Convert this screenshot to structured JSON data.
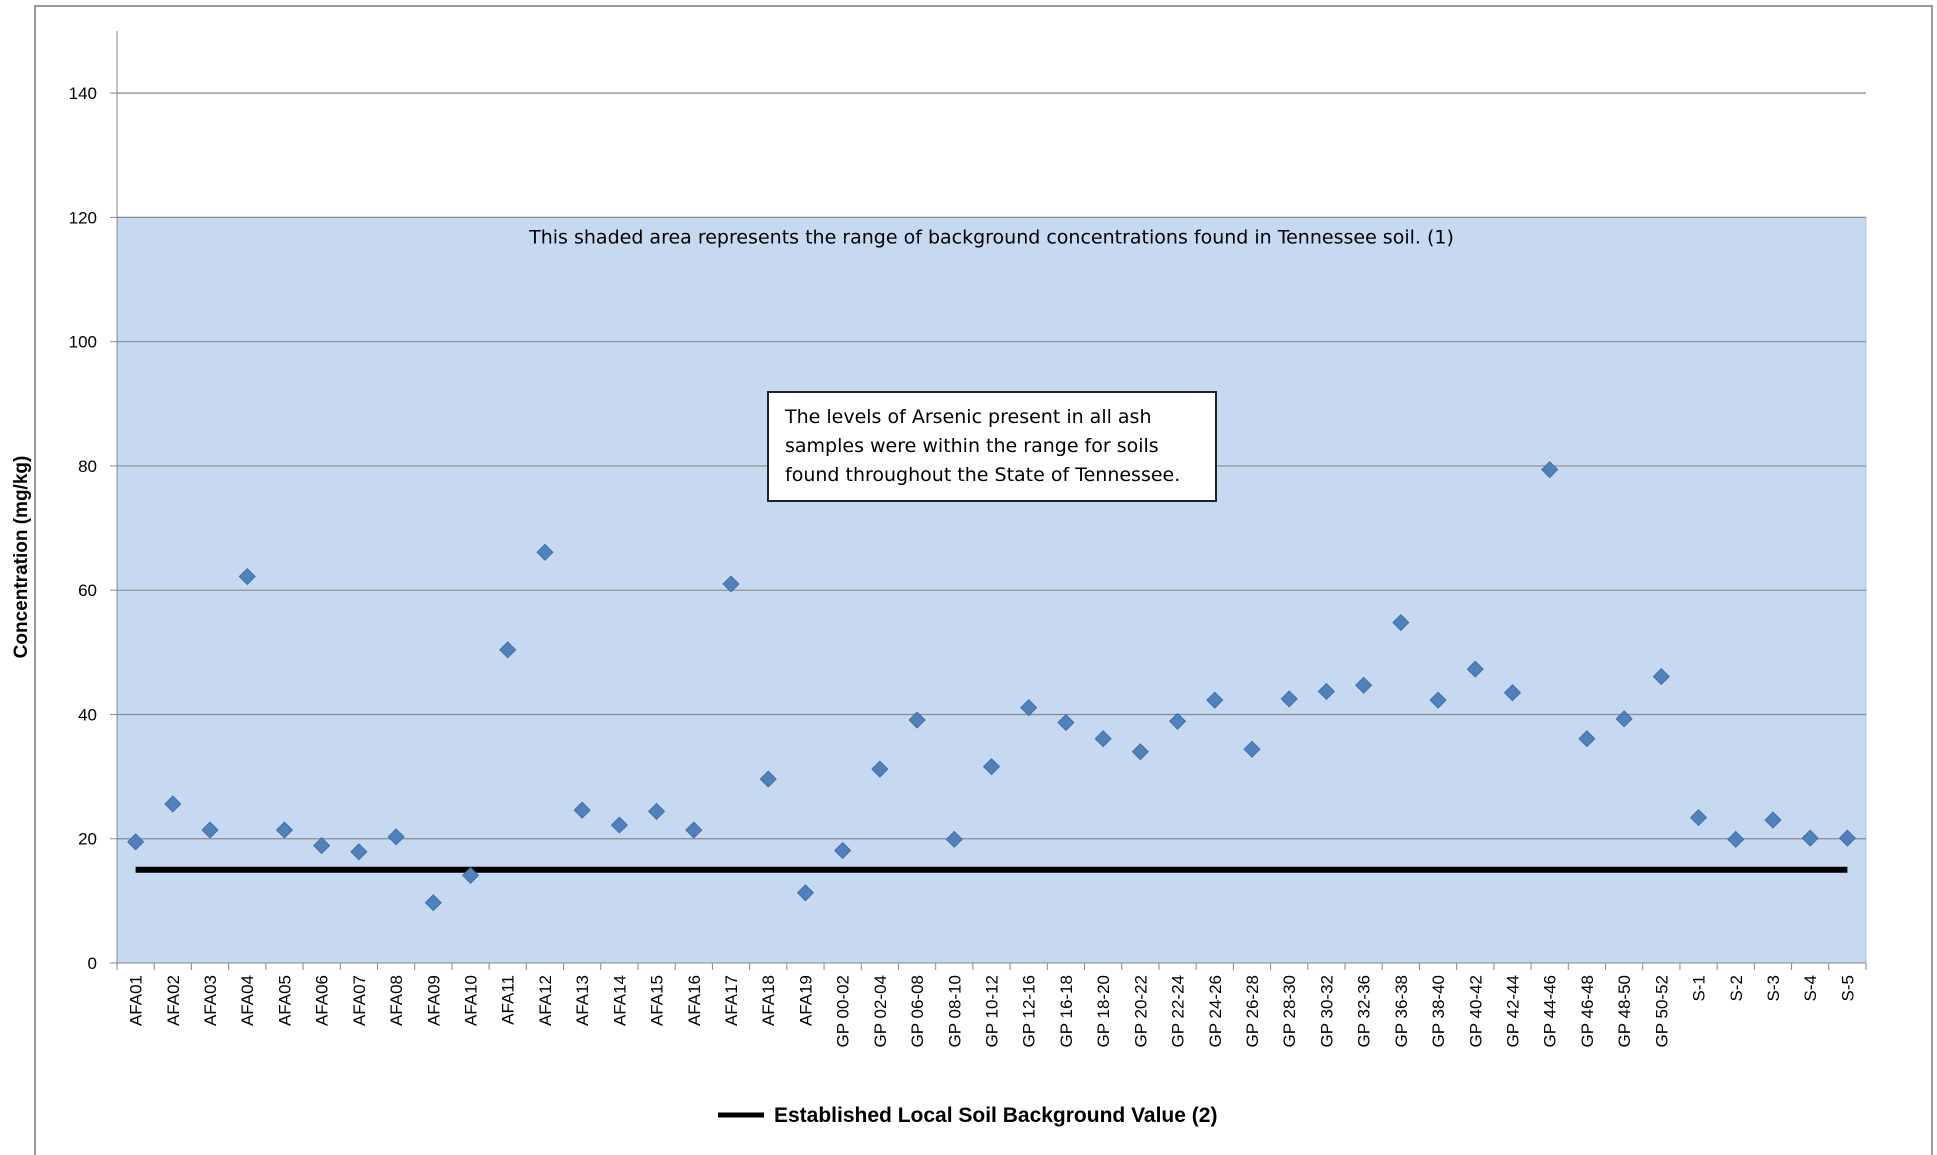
{
  "chart_data": {
    "type": "scatter",
    "y_axis_label": "Concentration (mg/kg)",
    "categories": [
      "AFA01",
      "AFA02",
      "AFA03",
      "AFA04",
      "AFA05",
      "AFA06",
      "AFA07",
      "AFA08",
      "AFA09",
      "AFA10",
      "AFA11",
      "AFA12",
      "AFA13",
      "AFA14",
      "AFA15",
      "AFA16",
      "AFA17",
      "AFA18",
      "AFA19",
      "GP 00-02",
      "GP 02-04",
      "GP 06-08",
      "GP 08-10",
      "GP 10-12",
      "GP 12-16",
      "GP 16-18",
      "GP 18-20",
      "GP 20-22",
      "GP 22-24",
      "GP 24-26",
      "GP 26-28",
      "GP 28-30",
      "GP 30-32",
      "GP 32-36",
      "GP 36-38",
      "GP 38-40",
      "GP 40-42",
      "GP 42-44",
      "GP 44-46",
      "GP 46-48",
      "GP 48-50",
      "GP 50-52",
      "S-1",
      "S-2",
      "S-3",
      "S-4",
      "S-5"
    ],
    "values": [
      19.5,
      25.6,
      21.4,
      62.2,
      21.4,
      18.9,
      17.9,
      20.3,
      9.7,
      14.1,
      50.4,
      66.1,
      24.6,
      22.2,
      24.4,
      21.4,
      61.0,
      29.6,
      11.3,
      18.1,
      31.2,
      39.1,
      19.9,
      31.6,
      41.1,
      38.7,
      36.1,
      34.0,
      38.9,
      42.3,
      34.4,
      42.5,
      43.7,
      44.7,
      54.8,
      42.3,
      47.3,
      43.5,
      79.4,
      36.1,
      39.3,
      46.1,
      23.4,
      19.9,
      23.0,
      20.1,
      20.1
    ],
    "color": "#4f81bd",
    "ylim": [
      0,
      150
    ],
    "yticks": [
      0,
      20,
      40,
      60,
      80,
      100,
      120,
      140
    ],
    "grid": true,
    "band": {
      "from": 0,
      "to": 120,
      "color": "#c6d9f1",
      "label": "This shaded area represents the range of background concentrations found in Tennessee soil. (1)"
    },
    "reference_line": {
      "name": "Established Local Soil Background Value (2)",
      "value": 15,
      "color": "#000000"
    },
    "annotation": "The levels of Arsenic present in all ash samples were within the range for soils found throughout the State of Tennessee.",
    "legend": "bottom"
  }
}
